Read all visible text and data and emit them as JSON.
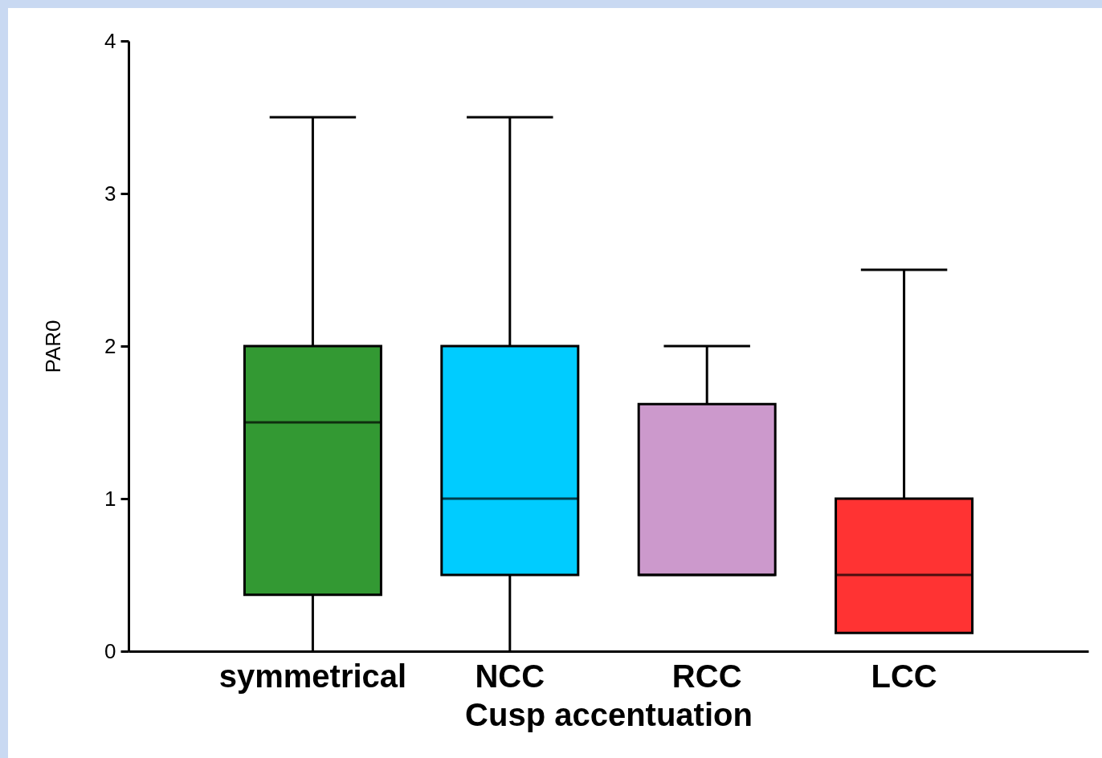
{
  "chart_data": {
    "type": "box",
    "xlabel": "Cusp accentuation",
    "ylabel": "PAR0",
    "categories": [
      "symmetrical",
      "NCC",
      "RCC",
      "LCC"
    ],
    "colors": [
      "#339933",
      "#00ccff",
      "#cc99cc",
      "#ff3333"
    ],
    "boxes": [
      {
        "low": 0,
        "q1": 0.37,
        "median": 1.5,
        "q3": 2,
        "high": 3.5
      },
      {
        "low": 0,
        "q1": 0.5,
        "median": 1,
        "q3": 2,
        "high": 3.5
      },
      {
        "low": 0.5,
        "q1": 0.5,
        "median": 0.5,
        "q3": 1.62,
        "high": 2
      },
      {
        "low": 0.12,
        "q1": 0.12,
        "median": 0.5,
        "q3": 1,
        "high": 2.5
      }
    ],
    "ylim": [
      0,
      4
    ],
    "yticks": [
      0,
      1,
      2,
      3,
      4
    ],
    "grid": false
  }
}
